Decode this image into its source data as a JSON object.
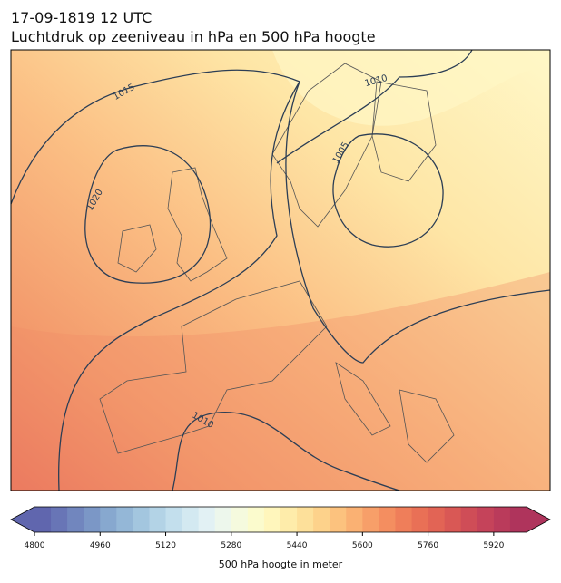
{
  "header": {
    "title": "17-09-1819 12 UTC",
    "subtitle": "Luchtdruk op zeeniveau in hPa en 500 hPa hoogte"
  },
  "contour_labels": [
    "1015",
    "1010",
    "1005",
    "1020",
    "1010"
  ],
  "colorbar": {
    "label": "500 hPa hoogte in meter",
    "range": [
      4800,
      6000
    ],
    "ticks": [
      4800,
      4960,
      5120,
      5280,
      5440,
      5600,
      5760,
      5920
    ],
    "colors": [
      "#6066ae",
      "#6875b6",
      "#7186be",
      "#7b97c6",
      "#87a8cf",
      "#94b7d7",
      "#a3c6df",
      "#b3d3e6",
      "#c3dfed",
      "#d3e9f1",
      "#e2f1f4",
      "#edf7ec",
      "#f5fade",
      "#fbfbcd",
      "#fff6bc",
      "#feecaa",
      "#fde09a",
      "#fdd28b",
      "#fcc27e",
      "#fab173",
      "#f79f69",
      "#f48e60",
      "#ef7e5a",
      "#e97056",
      "#e26455",
      "#d95855",
      "#cf4d57",
      "#c5435a",
      "#ba3b5b",
      "#af345c"
    ]
  }
}
